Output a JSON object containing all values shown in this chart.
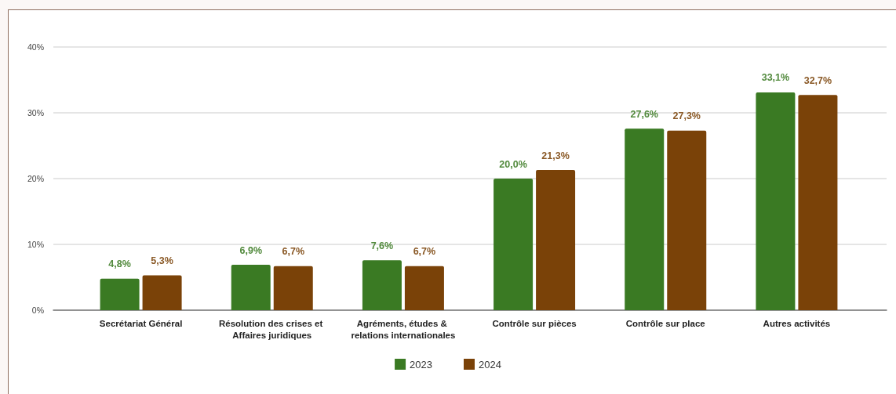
{
  "chart_data": {
    "type": "bar",
    "categories": [
      "Secrétariat Général",
      "Résolution des crises et Affaires juridiques",
      "Agréments, études & relations internationales",
      "Contrôle sur pièces",
      "Contrôle sur place",
      "Autres activités"
    ],
    "series": [
      {
        "name": "2023",
        "color": "#3a7a23",
        "values": [
          4.8,
          6.9,
          7.6,
          20.0,
          27.6,
          33.1
        ],
        "value_labels": [
          "4,8%",
          "6,9%",
          "7,6%",
          "20,0%",
          "27,6%",
          "33,1%"
        ]
      },
      {
        "name": "2024",
        "color": "#7a4208",
        "values": [
          5.3,
          6.7,
          6.7,
          21.3,
          27.3,
          32.7
        ],
        "value_labels": [
          "5,3%",
          "6,7%",
          "6,7%",
          "21,3%",
          "27,3%",
          "32,7%"
        ]
      }
    ],
    "ylim": [
      0,
      40
    ],
    "yticks": [
      {
        "value": 0,
        "label": "0%"
      },
      {
        "value": 10,
        "label": "10%"
      },
      {
        "value": 20,
        "label": "20%"
      },
      {
        "value": 30,
        "label": "30%"
      },
      {
        "value": 40,
        "label": "40%"
      }
    ],
    "grid": "y",
    "legend": "bottom"
  }
}
